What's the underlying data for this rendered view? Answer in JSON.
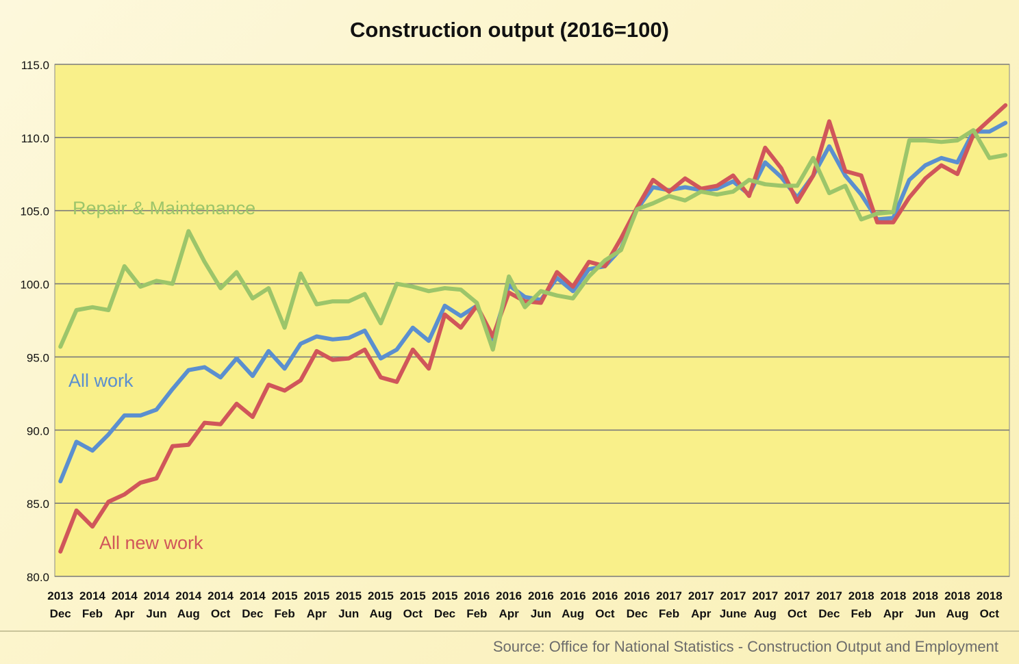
{
  "title": "Construction output (2016=100)",
  "source": "Source: Office for National Statistics - Construction Output and Employment",
  "colors": {
    "plot_bg": "#f9f08a",
    "grid": "#7a7a7a",
    "all_work": "#5b8fcf",
    "all_new_work": "#d0565a",
    "repair_maintenance": "#9cc56a"
  },
  "chart_data": {
    "type": "line",
    "title": "Construction output (2016=100)",
    "xlabel": "",
    "ylabel": "",
    "ylim": [
      80,
      115
    ],
    "yticks": [
      "80.0",
      "85.0",
      "90.0",
      "95.0",
      "100.0",
      "105.0",
      "110.0",
      "115.0"
    ],
    "grid": true,
    "x_tick_labels": [
      [
        "2013",
        "Dec"
      ],
      [
        "2014",
        "Feb"
      ],
      [
        "2014",
        "Apr"
      ],
      [
        "2014",
        "Jun"
      ],
      [
        "2014",
        "Aug"
      ],
      [
        "2014",
        "Oct"
      ],
      [
        "2014",
        "Dec"
      ],
      [
        "2015",
        "Feb"
      ],
      [
        "2015",
        "Apr"
      ],
      [
        "2015",
        "Jun"
      ],
      [
        "2015",
        "Aug"
      ],
      [
        "2015",
        "Oct"
      ],
      [
        "2015",
        "Dec"
      ],
      [
        "2016",
        "Feb"
      ],
      [
        "2016",
        "Apr"
      ],
      [
        "2016",
        "Jun"
      ],
      [
        "2016",
        "Aug"
      ],
      [
        "2016",
        "Oct"
      ],
      [
        "2016",
        "Dec"
      ],
      [
        "2017",
        "Feb"
      ],
      [
        "2017",
        "Apr"
      ],
      [
        "2017",
        "June"
      ],
      [
        "2017",
        "Aug"
      ],
      [
        "2017",
        "Oct"
      ],
      [
        "2017",
        "Dec"
      ],
      [
        "2018",
        "Feb"
      ],
      [
        "2018",
        "Apr"
      ],
      [
        "2018",
        "Jun"
      ],
      [
        "2018",
        "Aug"
      ],
      [
        "2018",
        "Oct"
      ]
    ],
    "x": [
      "2013-12",
      "2014-01",
      "2014-02",
      "2014-03",
      "2014-04",
      "2014-05",
      "2014-06",
      "2014-07",
      "2014-08",
      "2014-09",
      "2014-10",
      "2014-11",
      "2014-12",
      "2015-01",
      "2015-02",
      "2015-03",
      "2015-04",
      "2015-05",
      "2015-06",
      "2015-07",
      "2015-08",
      "2015-09",
      "2015-10",
      "2015-11",
      "2015-12",
      "2016-01",
      "2016-02",
      "2016-03",
      "2016-04",
      "2016-05",
      "2016-06",
      "2016-07",
      "2016-08",
      "2016-09",
      "2016-10",
      "2016-11",
      "2016-12",
      "2017-01",
      "2017-02",
      "2017-03",
      "2017-04",
      "2017-05",
      "2017-06",
      "2017-07",
      "2017-08",
      "2017-09",
      "2017-10",
      "2017-11",
      "2017-12",
      "2018-01",
      "2018-02",
      "2018-03",
      "2018-04",
      "2018-05",
      "2018-06",
      "2018-07",
      "2018-08",
      "2018-09",
      "2018-10",
      "2018-11"
    ],
    "series": [
      {
        "name": "All work",
        "color": "#5b8fcf",
        "values": [
          86.5,
          89.2,
          88.6,
          89.7,
          91.0,
          91.0,
          91.4,
          92.8,
          94.1,
          94.3,
          93.6,
          94.9,
          93.7,
          95.4,
          94.2,
          95.9,
          96.4,
          96.2,
          96.3,
          96.8,
          94.9,
          95.5,
          97.0,
          96.1,
          98.5,
          97.8,
          98.5,
          96.2,
          99.9,
          99.1,
          98.9,
          100.4,
          99.5,
          101.0,
          101.2,
          102.4,
          105.1,
          106.6,
          106.4,
          106.6,
          106.4,
          106.5,
          107.0,
          106.1,
          108.3,
          107.3,
          105.9,
          107.4,
          109.4,
          107.4,
          106.1,
          104.4,
          104.5,
          107.1,
          108.1,
          108.6,
          108.3,
          110.4,
          110.4,
          111.0
        ]
      },
      {
        "name": "All new work",
        "color": "#d0565a",
        "values": [
          81.7,
          84.5,
          83.4,
          85.1,
          85.6,
          86.4,
          86.7,
          88.9,
          89.0,
          90.5,
          90.4,
          91.8,
          90.9,
          93.1,
          92.7,
          93.4,
          95.4,
          94.8,
          94.9,
          95.5,
          93.6,
          93.3,
          95.5,
          94.2,
          97.9,
          97.0,
          98.5,
          96.4,
          99.4,
          98.8,
          98.7,
          100.8,
          99.8,
          101.5,
          101.2,
          103.1,
          105.2,
          107.1,
          106.3,
          107.2,
          106.5,
          106.7,
          107.4,
          106.0,
          109.3,
          107.9,
          105.6,
          107.4,
          111.1,
          107.7,
          107.4,
          104.2,
          104.2,
          105.9,
          107.2,
          108.1,
          107.5,
          110.2,
          111.2,
          112.2
        ]
      },
      {
        "name": "Repair & Maintenance",
        "color": "#9cc56a",
        "values": [
          95.7,
          98.2,
          98.4,
          98.2,
          101.2,
          99.8,
          100.2,
          100.0,
          103.6,
          101.5,
          99.7,
          100.8,
          99.0,
          99.7,
          97.0,
          100.7,
          98.6,
          98.8,
          98.8,
          99.3,
          97.3,
          100.0,
          99.8,
          99.5,
          99.7,
          99.6,
          98.7,
          95.5,
          100.5,
          98.4,
          99.5,
          99.2,
          99.0,
          100.5,
          101.6,
          102.3,
          105.1,
          105.5,
          106.0,
          105.7,
          106.3,
          106.1,
          106.3,
          107.1,
          106.8,
          106.7,
          106.7,
          108.6,
          106.2,
          106.7,
          104.4,
          104.8,
          104.9,
          109.8,
          109.8,
          109.7,
          109.8,
          110.5,
          108.6,
          108.8
        ]
      }
    ],
    "annotations": [
      {
        "text": "Repair & Maintenance",
        "series": "Repair & Maintenance"
      },
      {
        "text": "All work",
        "series": "All work"
      },
      {
        "text": "All new work",
        "series": "All new work"
      }
    ]
  }
}
